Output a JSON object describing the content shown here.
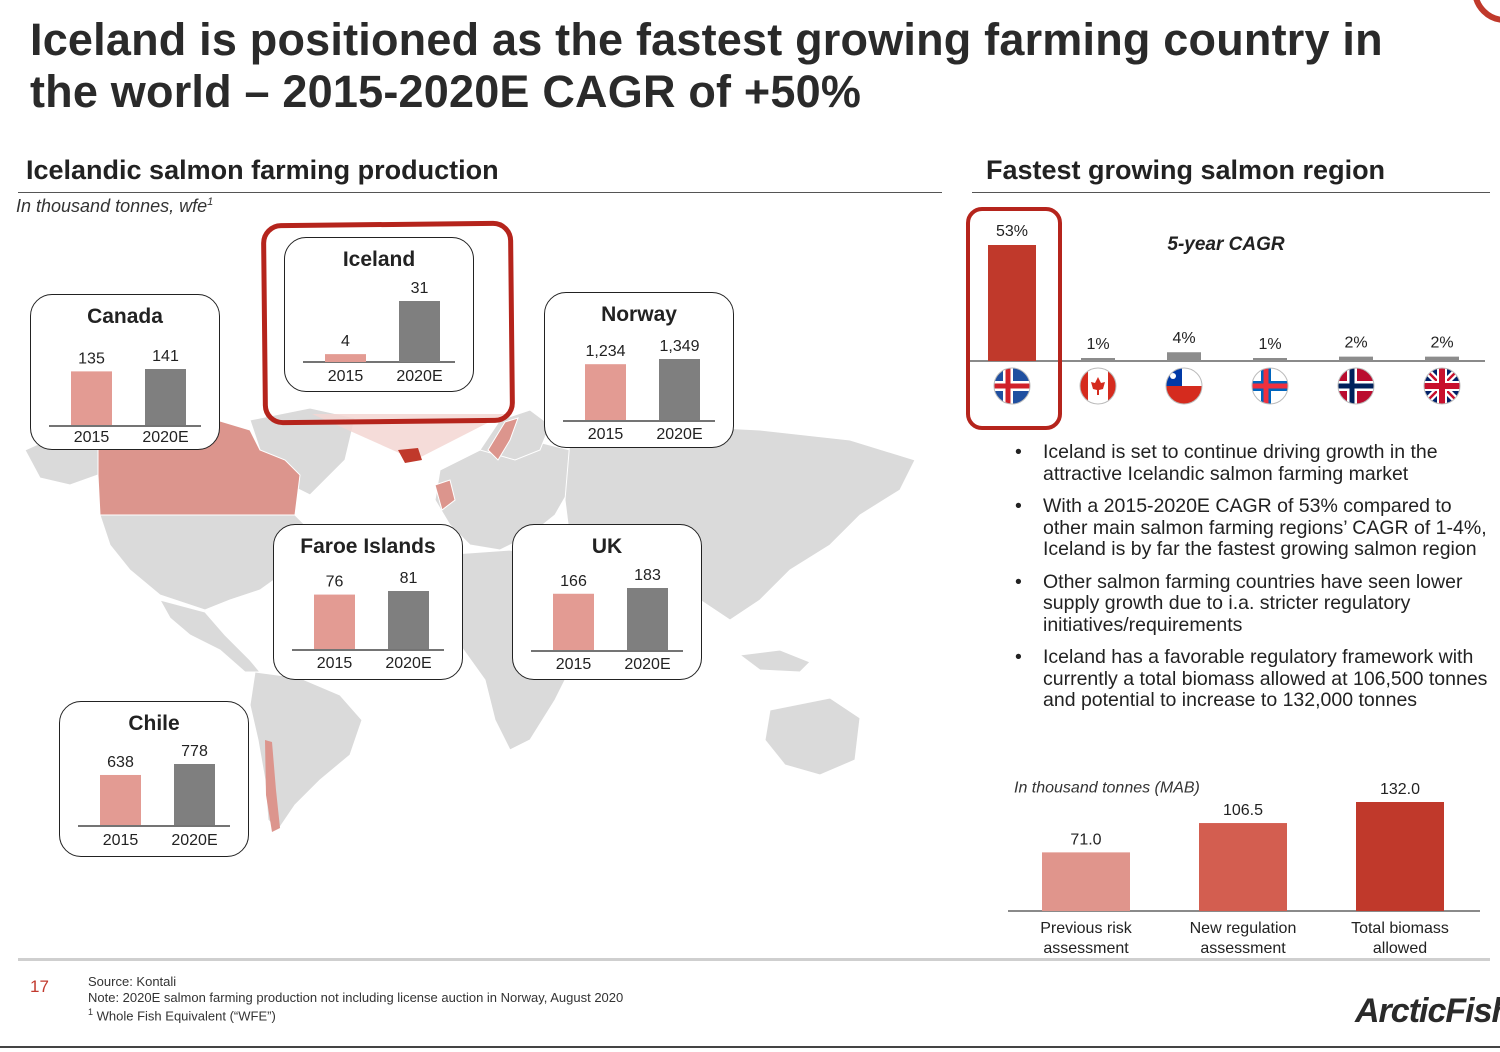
{
  "title": "Iceland is positioned as the fastest growing farming country in the world – 2015-2020E CAGR of +50%",
  "left_section": {
    "title": "Icelandic salmon farming production",
    "unit": "In thousand tonnes, wfe",
    "unit_sup": "1"
  },
  "right_section": {
    "title": "Fastest growing salmon region"
  },
  "chart_data": [
    {
      "type": "bar",
      "title": "Canada",
      "categories": [
        "2015",
        "2020E"
      ],
      "values": [
        135,
        141
      ],
      "value_labels": [
        "135",
        "141"
      ]
    },
    {
      "type": "bar",
      "title": "Iceland",
      "categories": [
        "2015",
        "2020E"
      ],
      "values": [
        4,
        31
      ],
      "value_labels": [
        "4",
        "31"
      ]
    },
    {
      "type": "bar",
      "title": "Norway",
      "categories": [
        "2015",
        "2020E"
      ],
      "values": [
        1234,
        1349
      ],
      "value_labels": [
        "1,234",
        "1,349"
      ]
    },
    {
      "type": "bar",
      "title": "Faroe Islands",
      "categories": [
        "2015",
        "2020E"
      ],
      "values": [
        76,
        81
      ],
      "value_labels": [
        "76",
        "81"
      ]
    },
    {
      "type": "bar",
      "title": "UK",
      "categories": [
        "2015",
        "2020E"
      ],
      "values": [
        166,
        183
      ],
      "value_labels": [
        "166",
        "183"
      ]
    },
    {
      "type": "bar",
      "title": "Chile",
      "categories": [
        "2015",
        "2020E"
      ],
      "values": [
        638,
        778
      ],
      "value_labels": [
        "638",
        "778"
      ]
    },
    {
      "type": "bar",
      "title": "5-year CAGR",
      "categories": [
        "iceland-flag",
        "canada-flag",
        "chile-flag",
        "faroe-islands-flag",
        "norway-flag",
        "uk-flag"
      ],
      "values": [
        53,
        1,
        4,
        1,
        2,
        2
      ],
      "value_labels": [
        "53%",
        "1%",
        "4%",
        "1%",
        "2%",
        "2%"
      ],
      "colors": [
        "#c0392b",
        "#8c8c8c"
      ]
    },
    {
      "type": "bar",
      "title": "",
      "ylabel": "In thousand tonnes (MAB)",
      "categories": [
        "Previous risk assessment",
        "New regulation assessment",
        "Total biomass allowed"
      ],
      "category_lines": [
        [
          "Previous risk",
          "assessment"
        ],
        [
          "New regulation",
          "assessment"
        ],
        [
          "Total biomass",
          "allowed"
        ]
      ],
      "values": [
        71.0,
        106.5,
        132.0
      ],
      "value_labels": [
        "71.0",
        "106.5",
        "132.0"
      ],
      "colors": [
        "#e0958c",
        "#d35e50",
        "#c0392b"
      ]
    }
  ],
  "colors": {
    "bar_2015": "#e39b93",
    "bar_2020": "#7f7f7f",
    "accent": "#c0392b",
    "map": "#dadada",
    "map_canada": "#dc958d"
  },
  "bullets": [
    "Iceland is set to continue driving growth in the attractive Icelandic salmon farming market",
    "With a 2015-2020E CAGR of 53% compared to other main salmon farming regions’ CAGR of 1-4%, Iceland is by far the fastest growing salmon region",
    "Other salmon farming countries have seen lower supply growth due to i.a. stricter regulatory initiatives/requirements",
    "Iceland has a favorable regulatory framework with currently a total biomass allowed at 106,500 tonnes and potential to increase to 132,000 tonnes"
  ],
  "footer": {
    "page_number": "17",
    "source": "Source: Kontali",
    "note": "Note: 2020E salmon farming production not including license auction in Norway, August 2020",
    "footnote_sup": "1",
    "footnote": "Whole Fish Equivalent (“WFE”)",
    "logo_text": "ArcticFish"
  }
}
